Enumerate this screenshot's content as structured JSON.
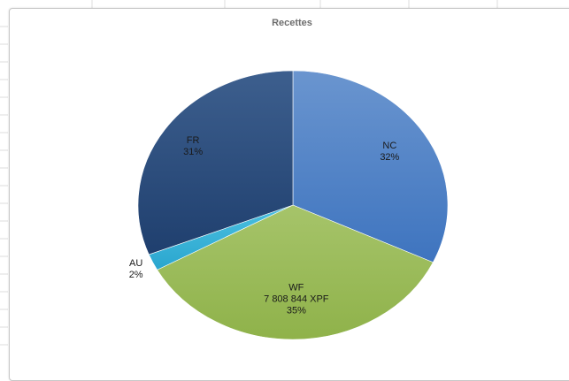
{
  "chart_data": {
    "type": "pie",
    "title": "Recettes",
    "slices": [
      {
        "label": "NC",
        "value": 32,
        "value_text": "",
        "pct_text": "32%",
        "color": "#4a7ec4"
      },
      {
        "label": "WF",
        "value": 35,
        "value_text": "7 808 844 XPF",
        "pct_text": "35%",
        "color": "#9bbb59"
      },
      {
        "label": "AU",
        "value": 2,
        "value_text": "",
        "pct_text": "2%",
        "color": "#3fb3d6"
      },
      {
        "label": "FR",
        "value": 31,
        "value_text": "",
        "pct_text": "31%",
        "color": "#2f4f7e"
      }
    ],
    "legend": "none"
  }
}
